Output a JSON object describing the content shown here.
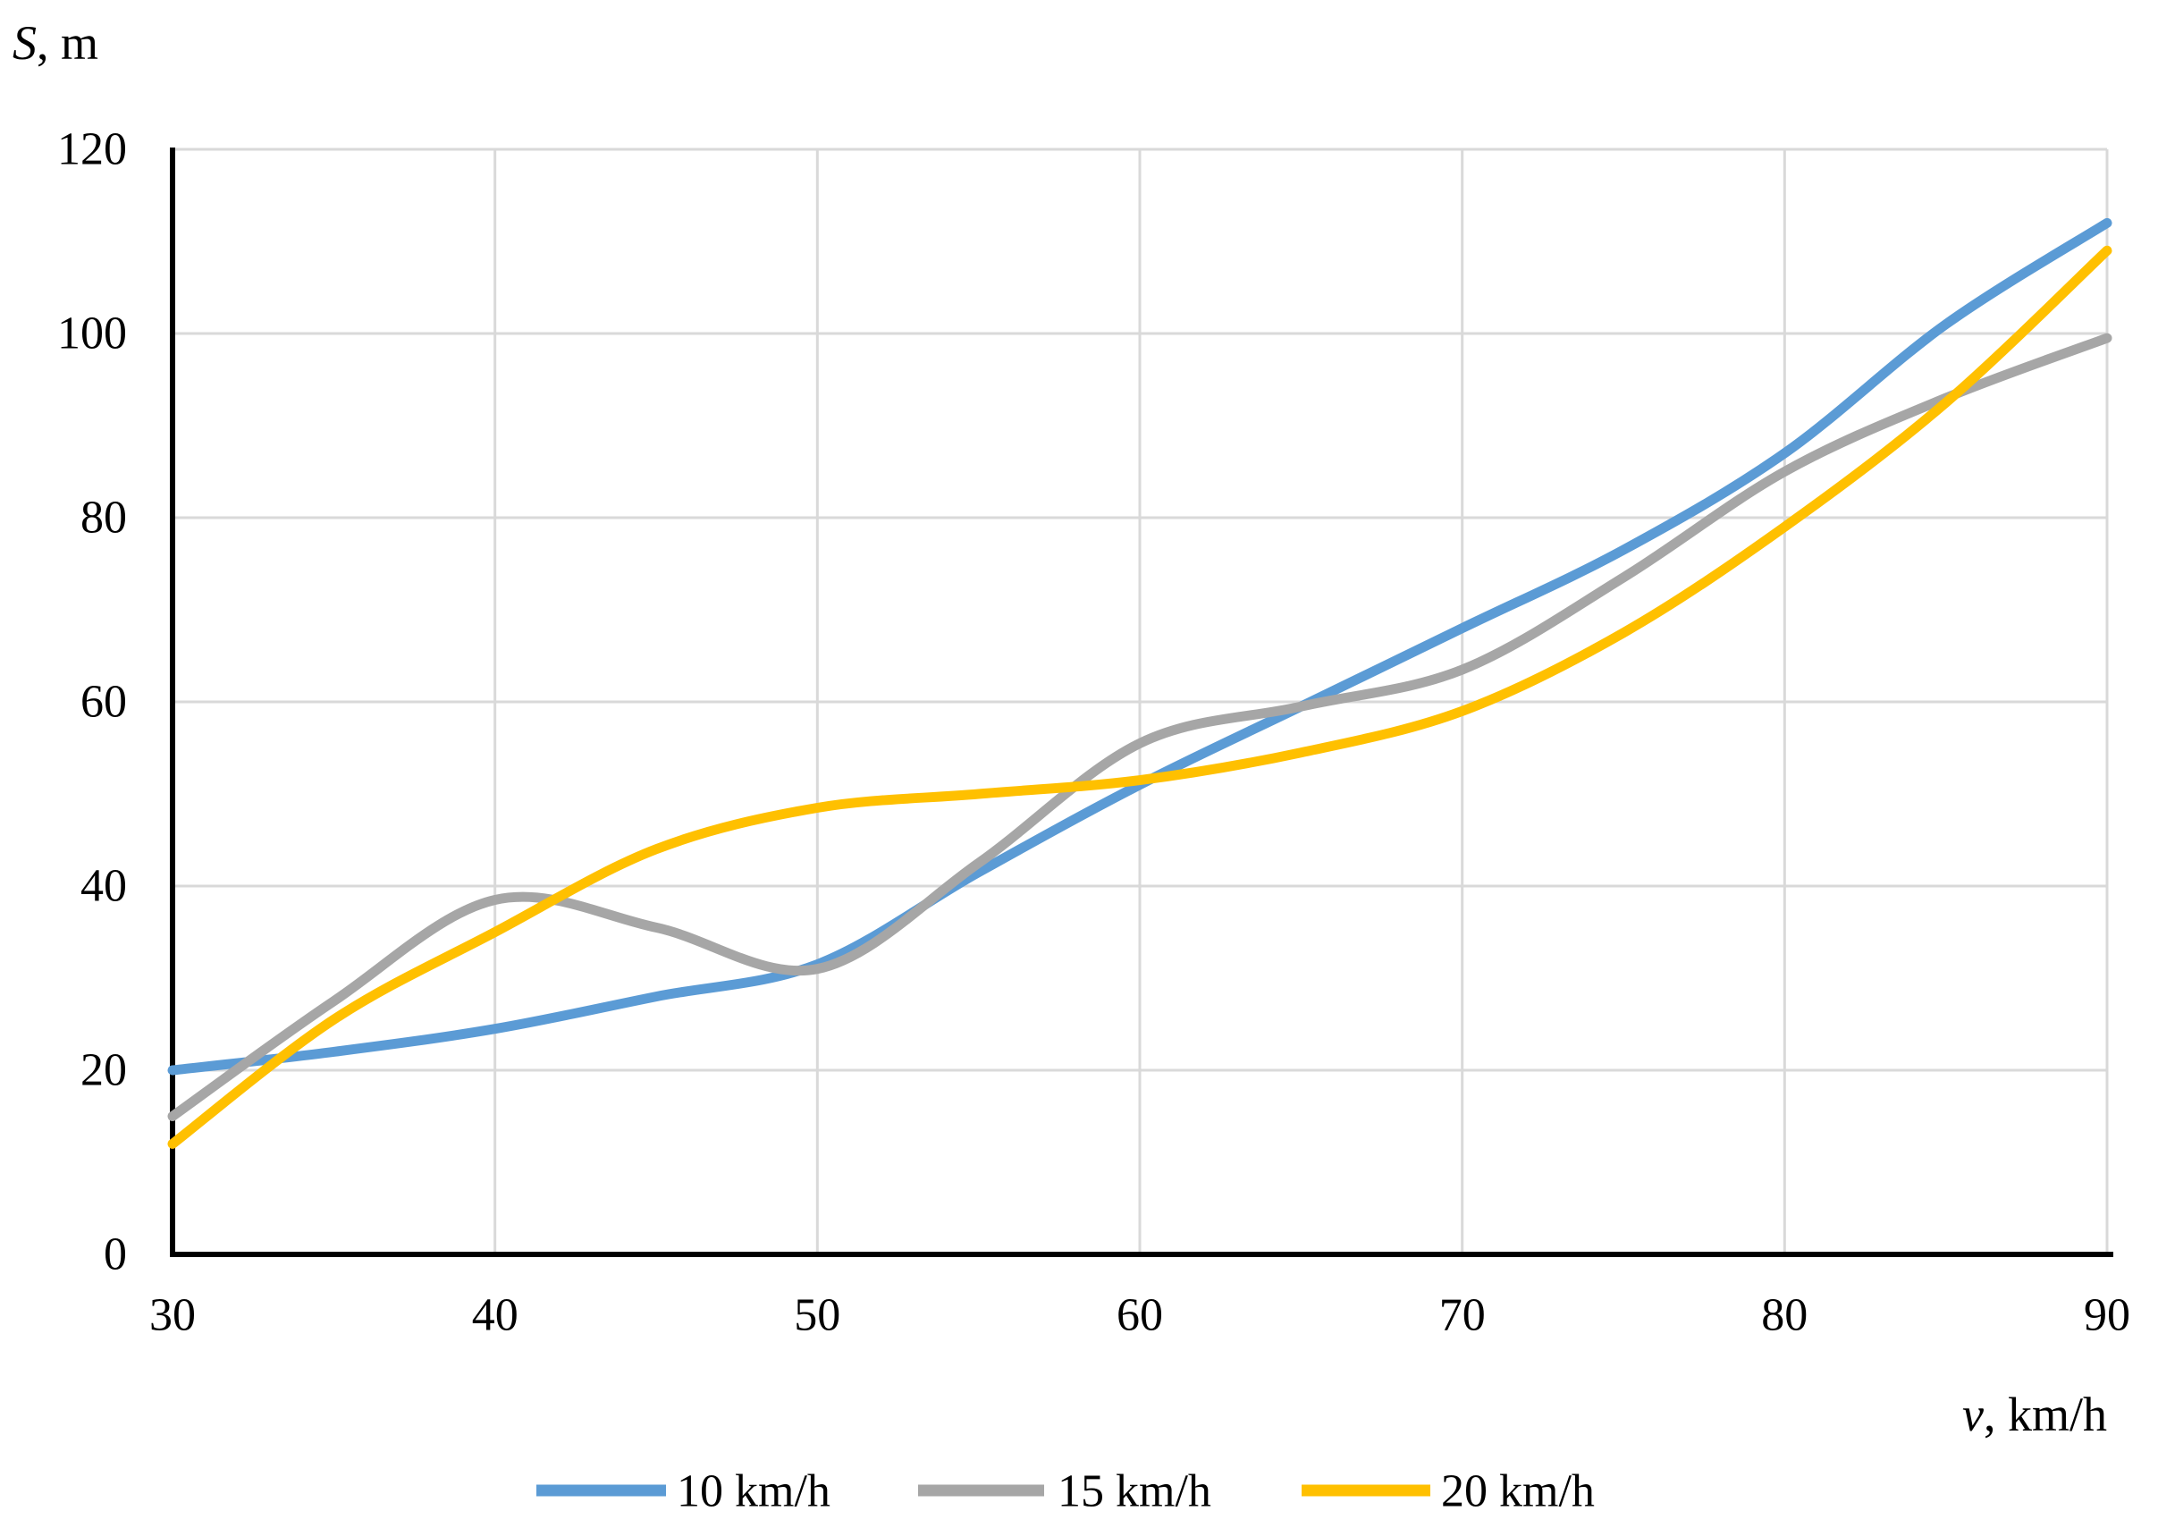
{
  "chart_data": {
    "type": "line",
    "title": "",
    "xlabel": "v, km/h",
    "ylabel": "S, m",
    "xlim": [
      30,
      90
    ],
    "ylim": [
      0,
      120
    ],
    "x_ticks": [
      30,
      40,
      50,
      60,
      70,
      80,
      90
    ],
    "y_ticks": [
      0,
      20,
      40,
      60,
      80,
      100,
      120
    ],
    "grid": true,
    "grid_color": "#D9D9D9",
    "axis_color": "#000000",
    "legend_position": "bottom-center",
    "x": [
      30,
      35,
      40,
      45,
      50,
      55,
      60,
      65,
      70,
      75,
      80,
      85,
      90
    ],
    "series": [
      {
        "name": "10 km/h",
        "color": "#5B9BD5",
        "values": [
          20,
          22,
          24.5,
          28,
          31.5,
          41.5,
          51,
          59.5,
          68,
          76.5,
          87,
          101,
          112
        ]
      },
      {
        "name": "15 km/h",
        "color": "#A6A6A6",
        "values": [
          15,
          27.5,
          38.5,
          35.5,
          31,
          42.5,
          55.5,
          59.5,
          63.5,
          73.5,
          85,
          93,
          99.5
        ]
      },
      {
        "name": "20 km/h",
        "color": "#FFC000",
        "values": [
          12,
          25.5,
          35,
          44,
          48.5,
          50,
          51.5,
          54.5,
          59,
          67.5,
          79,
          92.5,
          109
        ]
      }
    ]
  },
  "axis_titles": {
    "y_symbol": "S",
    "y_rest": ", m",
    "x_symbol": "v",
    "x_rest": ", km/h"
  },
  "legend": {
    "items": [
      {
        "label": "10 km/h",
        "color": "#5B9BD5"
      },
      {
        "label": "15 km/h",
        "color": "#A6A6A6"
      },
      {
        "label": "20 km/h",
        "color": "#FFC000"
      }
    ]
  }
}
